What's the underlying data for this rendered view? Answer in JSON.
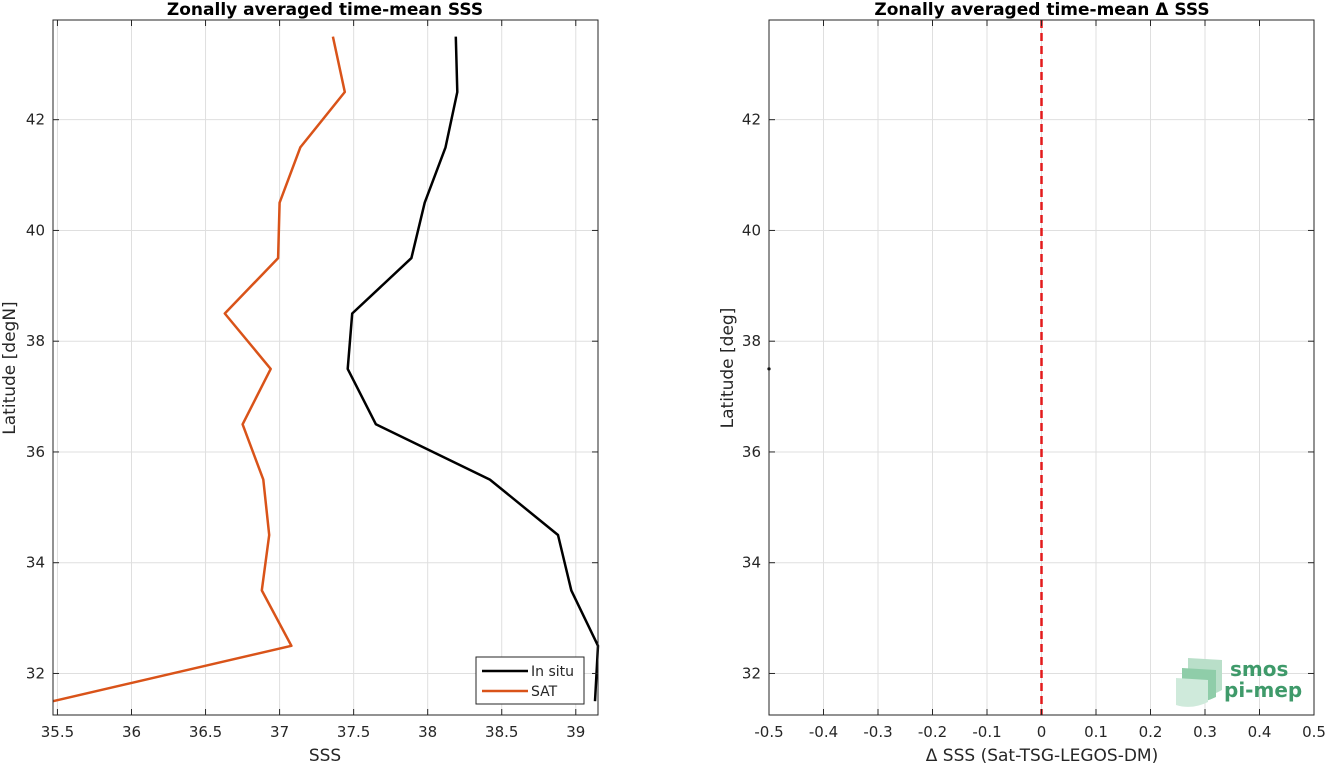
{
  "chart_data": [
    {
      "type": "line",
      "title": "Zonally averaged time-mean SSS",
      "xlabel": "SSS",
      "ylabel": "Latitude [degN]",
      "xlim": [
        35.47,
        39.15
      ],
      "ylim": [
        31.25,
        43.8
      ],
      "xticks": [
        "35.5",
        "36",
        "36.5",
        "37",
        "37.5",
        "38",
        "38.5",
        "39"
      ],
      "xtick_values": [
        35.5,
        36,
        36.5,
        37,
        37.5,
        38,
        38.5,
        39
      ],
      "yticks": [
        "32",
        "34",
        "36",
        "38",
        "40",
        "42"
      ],
      "ytick_values": [
        32,
        34,
        36,
        38,
        40,
        42
      ],
      "grid": true,
      "legend_position": "bottom-right",
      "series": [
        {
          "name": "In situ",
          "color": "#000000",
          "points": [
            [
              39.13,
              31.5
            ],
            [
              39.15,
              32.5
            ],
            [
              38.97,
              33.5
            ],
            [
              38.88,
              34.5
            ],
            [
              38.42,
              35.5
            ],
            [
              37.65,
              36.5
            ],
            [
              37.46,
              37.5
            ],
            [
              37.49,
              38.5
            ],
            [
              37.89,
              39.5
            ],
            [
              37.98,
              40.5
            ],
            [
              38.12,
              41.5
            ],
            [
              38.2,
              42.5
            ],
            [
              38.19,
              43.5
            ]
          ]
        },
        {
          "name": "SAT",
          "color": "#d95319",
          "points": [
            [
              35.47,
              31.5
            ],
            [
              37.08,
              32.5
            ],
            [
              36.88,
              33.5
            ],
            [
              36.93,
              34.5
            ],
            [
              36.89,
              35.5
            ],
            [
              36.75,
              36.5
            ],
            [
              36.94,
              37.5
            ],
            [
              36.63,
              38.5
            ],
            [
              36.99,
              39.5
            ],
            [
              37.0,
              40.5
            ],
            [
              37.14,
              41.5
            ],
            [
              37.44,
              42.5
            ],
            [
              37.36,
              43.5
            ]
          ]
        }
      ]
    },
    {
      "type": "scatter",
      "title": "Zonally averaged time-mean Δ SSS",
      "xlabel": "Δ SSS (Sat-TSG-LEGOS-DM)",
      "ylabel": "Latitude [deg]",
      "xlim": [
        -0.5,
        0.5
      ],
      "ylim": [
        31.25,
        43.8
      ],
      "xticks": [
        "-0.5",
        "-0.4",
        "-0.3",
        "-0.2",
        "-0.1",
        "0",
        "0.1",
        "0.2",
        "0.3",
        "0.4",
        "0.5"
      ],
      "xtick_values": [
        -0.5,
        -0.4,
        -0.3,
        -0.2,
        -0.1,
        0,
        0.1,
        0.2,
        0.3,
        0.4,
        0.5
      ],
      "yticks": [
        "32",
        "34",
        "36",
        "38",
        "40",
        "42"
      ],
      "ytick_values": [
        32,
        34,
        36,
        38,
        40,
        42
      ],
      "grid": true,
      "reference_line": {
        "x": 0,
        "color": "#e31a1c",
        "style": "dashed"
      },
      "points": [
        [
          -0.5,
          37.5
        ]
      ]
    }
  ],
  "logo": {
    "line1": "smos",
    "line2": "pi-mep"
  }
}
